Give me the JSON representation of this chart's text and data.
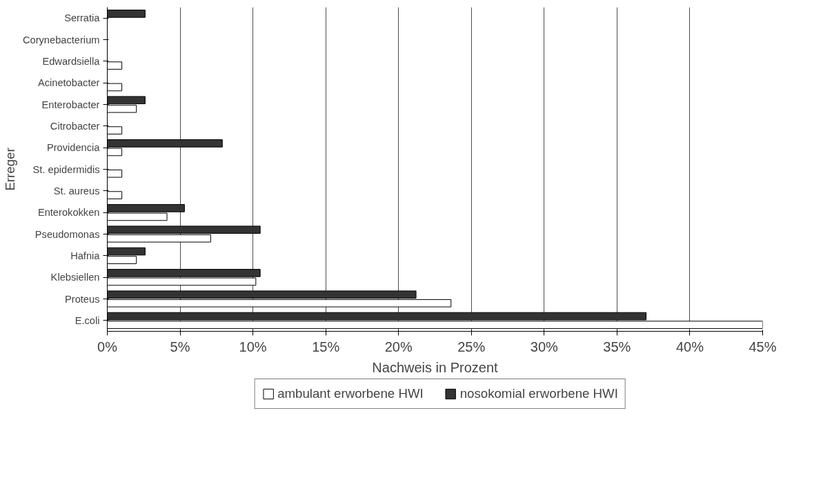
{
  "chart_data": {
    "type": "bar",
    "orientation": "horizontal",
    "xlabel": "Nachweis in Prozent",
    "ylabel": "Erreger",
    "categories": [
      "Serratia",
      "Corynebacterium",
      "Edwardsiella",
      "Acinetobacter",
      "Enterobacter",
      "Citrobacter",
      "Providencia",
      "St. epidermidis",
      "St. aureus",
      "Enterokokken",
      "Pseudomonas",
      "Hafnia",
      "Klebsiellen",
      "Proteus",
      "E.coli"
    ],
    "series": [
      {
        "name": "nosokomial erworbene HWI",
        "color": "#333333",
        "values": [
          2.6,
          0,
          0,
          0,
          2.6,
          0,
          7.9,
          0,
          0,
          5.3,
          10.5,
          2.6,
          10.5,
          21.2,
          37
        ]
      },
      {
        "name": "ambulant erworbene HWI",
        "color": "#ffffff",
        "values": [
          0,
          0,
          1.0,
          1.0,
          2.0,
          1.0,
          1.0,
          1.0,
          1.0,
          4.1,
          7.1,
          2.0,
          10.2,
          23.6,
          45
        ]
      }
    ],
    "xlim": [
      0,
      45
    ],
    "xticks": [
      {
        "value": 0,
        "label": "0%"
      },
      {
        "value": 5,
        "label": "5%"
      },
      {
        "value": 10,
        "label": "10%"
      },
      {
        "value": 15,
        "label": "15%"
      },
      {
        "value": 20,
        "label": "20%"
      },
      {
        "value": 25,
        "label": "25%"
      },
      {
        "value": 30,
        "label": "30%"
      },
      {
        "value": 35,
        "label": "35%"
      },
      {
        "value": 40,
        "label": "40%"
      },
      {
        "value": 45,
        "label": "45%"
      }
    ],
    "grid": "x",
    "legend": "bottom"
  }
}
